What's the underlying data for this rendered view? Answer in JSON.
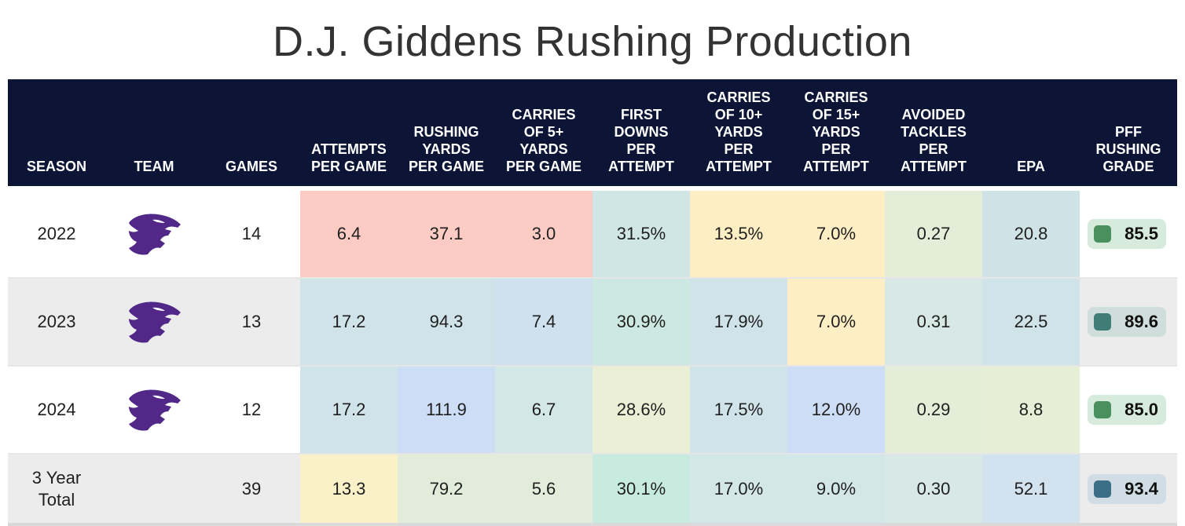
{
  "title": "D.J. Giddens Rushing Production",
  "headers": {
    "season": "SEASON",
    "team": "TEAM",
    "games": "GAMES",
    "att": "ATTEMPTS\nPER GAME",
    "yds": "RUSHING\nYARDS\nPER GAME",
    "c5": "CARRIES\nOF 5+\nYARDS\nPER GAME",
    "fd": "FIRST\nDOWNS\nPER\nATTEMPT",
    "c10": "CARRIES\nOF 10+\nYARDS\nPER\nATTEMPT",
    "c15": "CARRIES\nOF 15+\nYARDS\nPER\nATTEMPT",
    "avt": "AVOIDED\nTACKLES\nPER\nATTEMPT",
    "epa": "EPA",
    "grade": "PFF\nRUSHING\nGRADE"
  },
  "rows": [
    {
      "season": "2022",
      "team_icon": "kansas-state-wildcat-logo",
      "games": "14",
      "att": "6.4",
      "yds": "37.1",
      "c5": "3.0",
      "fd": "31.5%",
      "c10": "13.5%",
      "c15": "7.0%",
      "avt": "0.27",
      "epa": "20.8",
      "grade": "85.5",
      "grade_color": "#4a8f5e",
      "grade_bg": "#d7ebdd",
      "colors": {
        "att": "#fccbc3",
        "yds": "#fccbc3",
        "c5": "#fccbc3",
        "fd": "#cfe6e4",
        "c10": "#fdeec3",
        "c15": "#fdeec3",
        "avt": "#e3edd8",
        "epa": "#cfe3e6"
      }
    },
    {
      "season": "2023",
      "team_icon": "kansas-state-wildcat-logo",
      "games": "13",
      "att": "17.2",
      "yds": "94.3",
      "c5": "7.4",
      "fd": "30.9%",
      "c10": "17.9%",
      "c15": "7.0%",
      "avt": "0.31",
      "epa": "22.5",
      "grade": "89.6",
      "grade_color": "#3f7d76",
      "grade_bg": "#cfdedb",
      "colors": {
        "att": "#cfe3e8",
        "yds": "#cfe3e8",
        "c5": "#cfe0ee",
        "fd": "#cde8e1",
        "c10": "#cfe3e8",
        "c15": "#fdeec3",
        "avt": "#d8e8e4",
        "epa": "#cfe3e8"
      }
    },
    {
      "season": "2024",
      "team_icon": "kansas-state-wildcat-logo",
      "games": "12",
      "att": "17.2",
      "yds": "111.9",
      "c5": "6.7",
      "fd": "28.6%",
      "c10": "17.5%",
      "c15": "12.0%",
      "avt": "0.29",
      "epa": "8.8",
      "grade": "85.0",
      "grade_color": "#4a8f5e",
      "grade_bg": "#d7ebdd",
      "colors": {
        "att": "#cfe3e8",
        "yds": "#cdddf5",
        "c5": "#d3e7e7",
        "fd": "#eaefd6",
        "c10": "#cfe3e8",
        "c15": "#cdddf5",
        "avt": "#e3edd8",
        "epa": "#e6efd6"
      }
    },
    {
      "season": "3 Year\nTotal",
      "team_icon": "",
      "games": "39",
      "att": "13.3",
      "yds": "79.2",
      "c5": "5.6",
      "fd": "30.1%",
      "c10": "17.0%",
      "c15": "9.0%",
      "avt": "0.30",
      "epa": "52.1",
      "grade": "93.4",
      "grade_color": "#3c6f87",
      "grade_bg": "#d1dde4",
      "colors": {
        "att": "#fbf1c9",
        "yds": "#e1ecda",
        "c5": "#e1ecda",
        "fd": "#c8ebe0",
        "c10": "#d3e7e9",
        "c15": "#d3e7e9",
        "avt": "#d7e8e6",
        "epa": "#d3e2ef"
      }
    }
  ],
  "colors": {
    "header_bg": "#0c1535",
    "logo_purple": "#512888"
  }
}
